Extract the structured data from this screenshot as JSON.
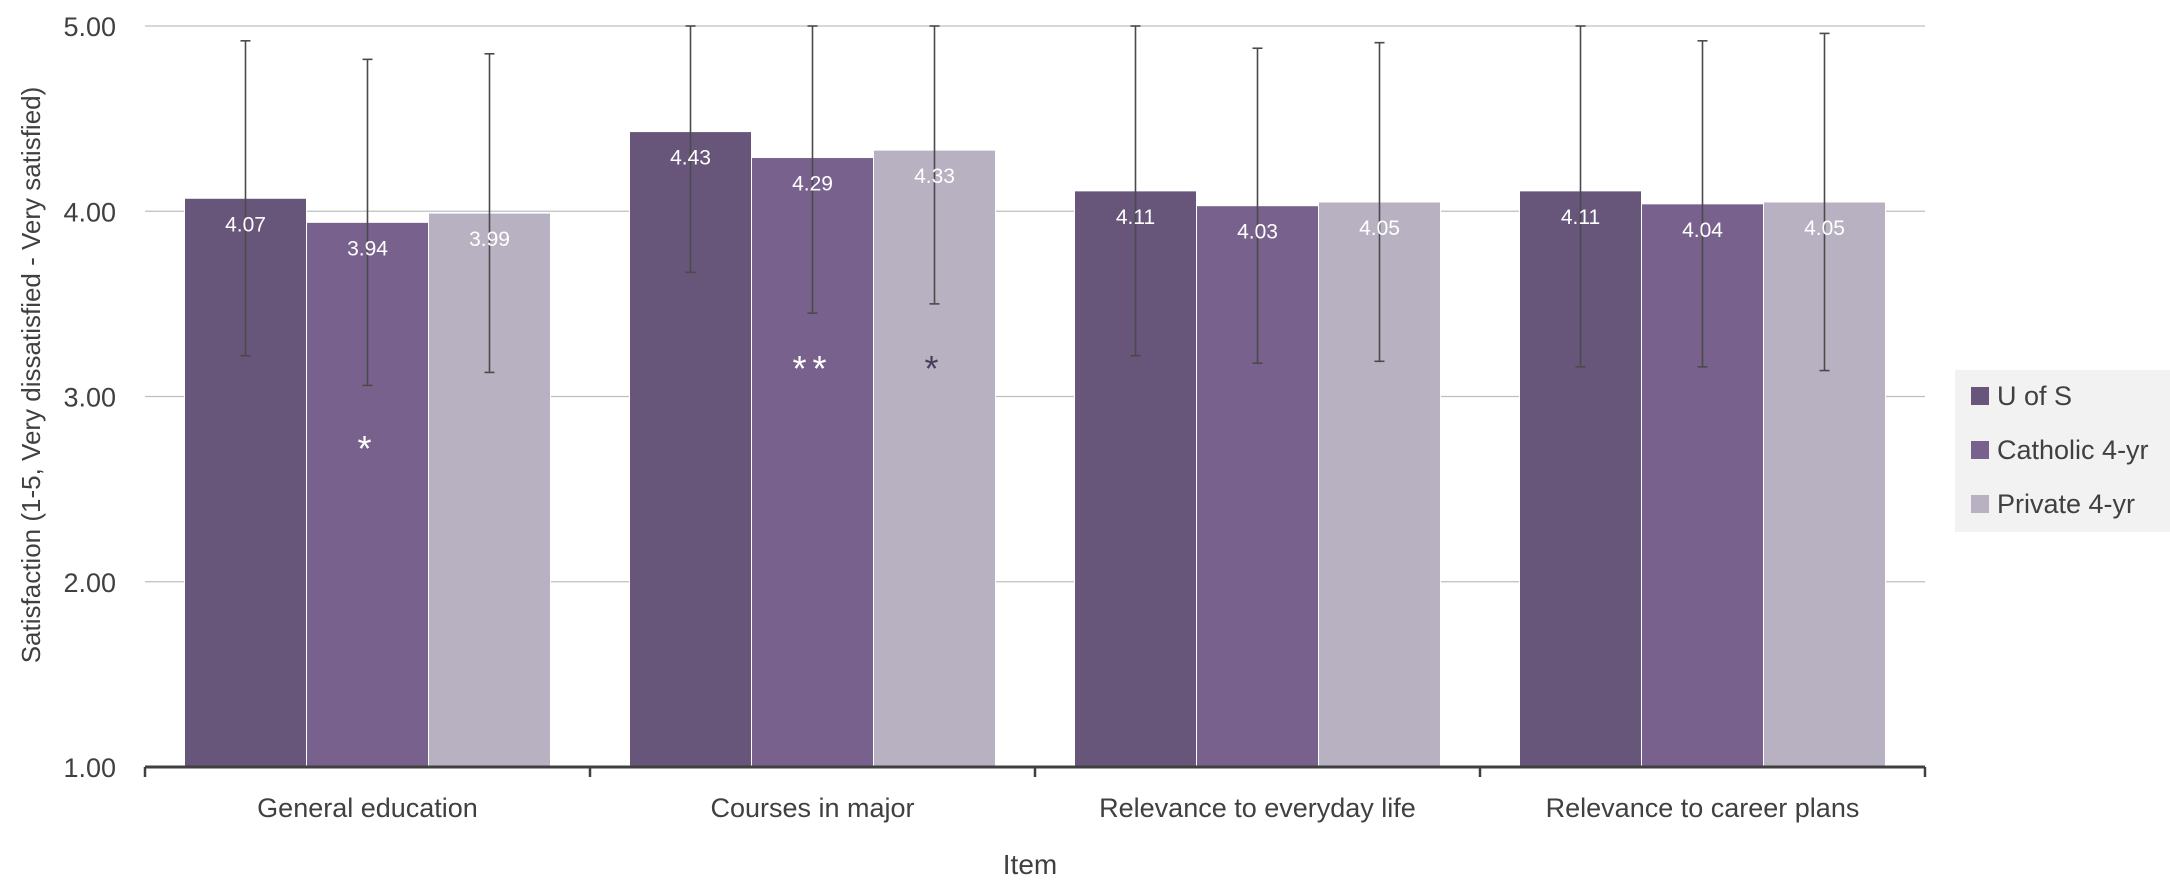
{
  "chart_data": {
    "type": "bar",
    "title": "",
    "xlabel": "Item",
    "ylabel": "Satisfaction (1-5, Very dissatisfied - Very satisfied)",
    "ylim": [
      1.0,
      5.0
    ],
    "yticks": [
      1.0,
      2.0,
      3.0,
      4.0,
      5.0
    ],
    "ytick_labels": [
      "1.00",
      "2.00",
      "3.00",
      "4.00",
      "5.00"
    ],
    "grid": true,
    "legend_position": "right",
    "categories": [
      "General education",
      "Courses in major",
      "Relevance to everyday life",
      "Relevance to career plans"
    ],
    "series": [
      {
        "name": "U of S",
        "color": "#67557a",
        "values": [
          4.07,
          4.43,
          4.11,
          4.11
        ],
        "labels": [
          "4.07",
          "4.43",
          "4.11",
          "4.11"
        ],
        "error_low": [
          3.22,
          3.67,
          3.22,
          3.16
        ],
        "error_high": [
          4.92,
          5.0,
          5.0,
          5.0
        ],
        "markers": [
          "",
          "",
          "",
          ""
        ]
      },
      {
        "name": "Catholic 4-yr",
        "color": "#78628d",
        "values": [
          3.94,
          4.29,
          4.03,
          4.04
        ],
        "labels": [
          "3.94",
          "4.29",
          "4.03",
          "4.04"
        ],
        "error_low": [
          3.06,
          3.45,
          3.18,
          3.16
        ],
        "error_high": [
          4.82,
          5.0,
          4.88,
          4.92
        ],
        "markers": [
          "*",
          "**",
          "",
          ""
        ],
        "marker_y": [
          2.75,
          3.18,
          null,
          null
        ],
        "marker_color": "#ffffff"
      },
      {
        "name": "Private 4-yr",
        "color": "#b8b1c2",
        "values": [
          3.99,
          4.33,
          4.05,
          4.05
        ],
        "labels": [
          "3.99",
          "4.33",
          "4.05",
          "4.05"
        ],
        "error_low": [
          3.13,
          3.5,
          3.19,
          3.14
        ],
        "error_high": [
          4.85,
          5.0,
          4.91,
          4.96
        ],
        "markers": [
          "",
          "*",
          "",
          ""
        ],
        "marker_y": [
          null,
          3.18,
          null,
          null
        ],
        "marker_color": "#4a3d5c"
      }
    ]
  }
}
